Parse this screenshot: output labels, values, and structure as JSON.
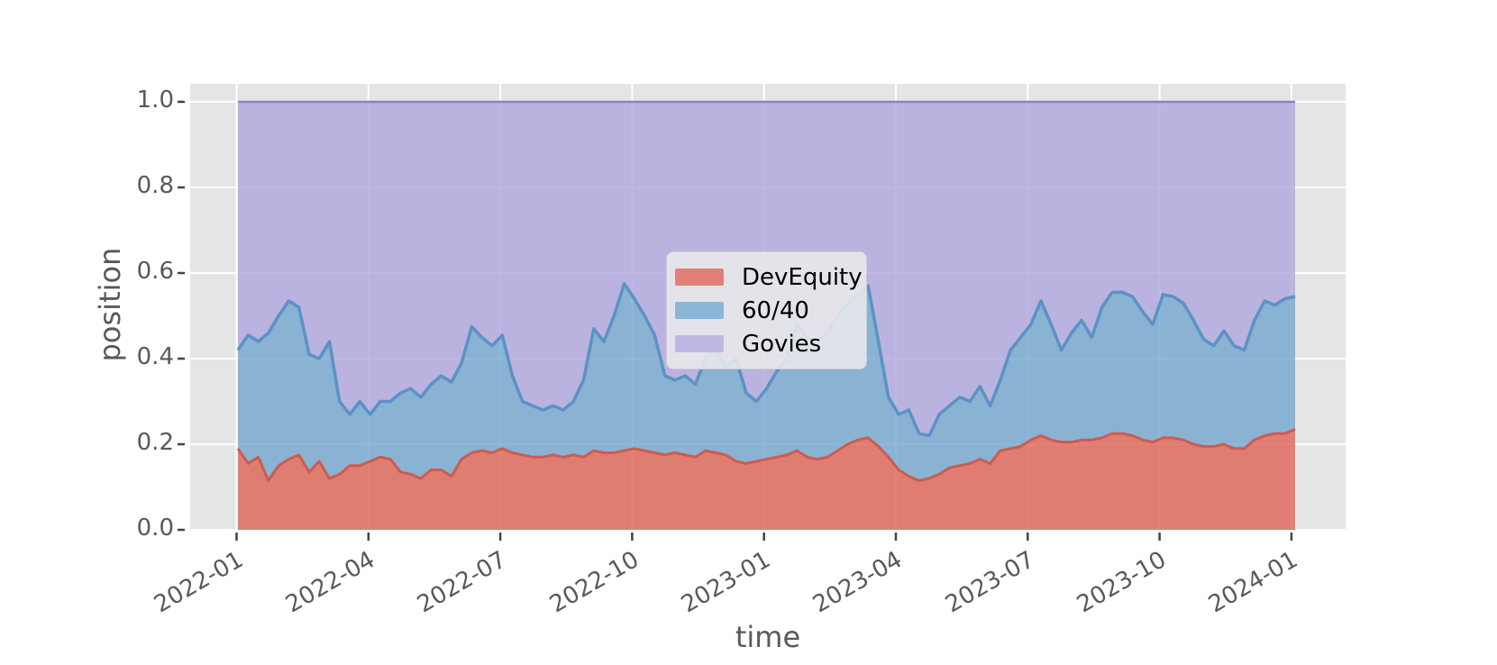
{
  "figure": {
    "background": "#ffffff",
    "plot_background": "#e5e5e5",
    "grid_color": "#ffffff",
    "tick_color": "#444444",
    "tick_label_color": "#595959",
    "axis_label_color": "#595959"
  },
  "chart_data": {
    "type": "area",
    "stacked": true,
    "title": "",
    "xlabel": "time",
    "ylabel": "position",
    "ylim": [
      0.0,
      1.0
    ],
    "grid": true,
    "x_tick_labels": [
      "2022-01",
      "2022-04",
      "2022-07",
      "2022-10",
      "2023-01",
      "2023-04",
      "2023-07",
      "2023-10",
      "2024-01"
    ],
    "y_tick_labels": [
      "0.0",
      "0.2",
      "0.4",
      "0.6",
      "0.8",
      "1.0"
    ],
    "x_unit": "weekly samples from 2022-01 to 2024-01",
    "legend": {
      "location": "center",
      "entries": [
        "DevEquity",
        "60/40",
        "Govies"
      ]
    },
    "series": [
      {
        "name": "DevEquity",
        "line_color": "#cd5c4e",
        "fill_color": "rgba(221,99,86,0.8)",
        "legend_color": "#e08179",
        "values": [
          0.19,
          0.155,
          0.17,
          0.115,
          0.15,
          0.165,
          0.175,
          0.135,
          0.16,
          0.12,
          0.13,
          0.15,
          0.15,
          0.16,
          0.17,
          0.165,
          0.135,
          0.13,
          0.12,
          0.14,
          0.14,
          0.125,
          0.165,
          0.18,
          0.185,
          0.18,
          0.19,
          0.18,
          0.175,
          0.17,
          0.17,
          0.175,
          0.17,
          0.175,
          0.17,
          0.185,
          0.18,
          0.18,
          0.185,
          0.19,
          0.185,
          0.18,
          0.175,
          0.18,
          0.175,
          0.17,
          0.185,
          0.18,
          0.175,
          0.16,
          0.155,
          0.16,
          0.165,
          0.17,
          0.175,
          0.185,
          0.17,
          0.165,
          0.17,
          0.185,
          0.2,
          0.21,
          0.215,
          0.195,
          0.17,
          0.14,
          0.125,
          0.115,
          0.12,
          0.13,
          0.145,
          0.15,
          0.155,
          0.165,
          0.155,
          0.185,
          0.19,
          0.195,
          0.21,
          0.22,
          0.21,
          0.205,
          0.205,
          0.21,
          0.21,
          0.215,
          0.225,
          0.225,
          0.22,
          0.21,
          0.205,
          0.215,
          0.215,
          0.21,
          0.2,
          0.195,
          0.195,
          0.2,
          0.19,
          0.19,
          0.21,
          0.22,
          0.225,
          0.225,
          0.235
        ]
      },
      {
        "name": "60/40",
        "line_color": "#5b92c6",
        "fill_color": "rgba(106,160,204,0.75)",
        "legend_color": "#8ab6d7",
        "values": [
          0.23,
          0.3,
          0.27,
          0.345,
          0.35,
          0.37,
          0.345,
          0.275,
          0.24,
          0.32,
          0.17,
          0.12,
          0.15,
          0.11,
          0.13,
          0.135,
          0.185,
          0.2,
          0.19,
          0.2,
          0.22,
          0.22,
          0.225,
          0.295,
          0.265,
          0.25,
          0.265,
          0.18,
          0.125,
          0.12,
          0.11,
          0.115,
          0.11,
          0.125,
          0.18,
          0.285,
          0.26,
          0.32,
          0.39,
          0.35,
          0.315,
          0.275,
          0.185,
          0.17,
          0.185,
          0.17,
          0.215,
          0.24,
          0.205,
          0.24,
          0.165,
          0.14,
          0.165,
          0.2,
          0.225,
          0.295,
          0.28,
          0.275,
          0.29,
          0.315,
          0.33,
          0.34,
          0.355,
          0.245,
          0.14,
          0.13,
          0.155,
          0.11,
          0.1,
          0.14,
          0.145,
          0.16,
          0.145,
          0.17,
          0.135,
          0.165,
          0.23,
          0.255,
          0.27,
          0.315,
          0.27,
          0.215,
          0.255,
          0.28,
          0.24,
          0.305,
          0.33,
          0.33,
          0.325,
          0.3,
          0.275,
          0.335,
          0.33,
          0.32,
          0.29,
          0.25,
          0.235,
          0.265,
          0.24,
          0.23,
          0.28,
          0.315,
          0.3,
          0.315,
          0.31
        ]
      },
      {
        "name": "Govies",
        "line_color": "#8d7ecf",
        "fill_color": "rgba(175,166,221,0.8)",
        "legend_color": "#bfb7e3",
        "values": [
          0.58,
          0.545,
          0.56,
          0.54,
          0.5,
          0.465,
          0.48,
          0.59,
          0.6,
          0.56,
          0.7,
          0.73,
          0.7,
          0.73,
          0.7,
          0.7,
          0.68,
          0.67,
          0.69,
          0.66,
          0.64,
          0.655,
          0.61,
          0.525,
          0.55,
          0.57,
          0.545,
          0.64,
          0.7,
          0.71,
          0.72,
          0.71,
          0.72,
          0.7,
          0.65,
          0.53,
          0.56,
          0.5,
          0.425,
          0.46,
          0.5,
          0.545,
          0.64,
          0.65,
          0.64,
          0.66,
          0.6,
          0.58,
          0.62,
          0.6,
          0.68,
          0.7,
          0.67,
          0.63,
          0.6,
          0.52,
          0.55,
          0.56,
          0.54,
          0.5,
          0.47,
          0.45,
          0.43,
          0.56,
          0.69,
          0.73,
          0.72,
          0.775,
          0.78,
          0.73,
          0.71,
          0.69,
          0.7,
          0.665,
          0.71,
          0.65,
          0.58,
          0.55,
          0.52,
          0.465,
          0.52,
          0.58,
          0.54,
          0.51,
          0.55,
          0.48,
          0.445,
          0.445,
          0.455,
          0.49,
          0.52,
          0.45,
          0.455,
          0.47,
          0.51,
          0.555,
          0.57,
          0.535,
          0.57,
          0.58,
          0.51,
          0.465,
          0.475,
          0.46,
          0.455
        ]
      }
    ]
  }
}
